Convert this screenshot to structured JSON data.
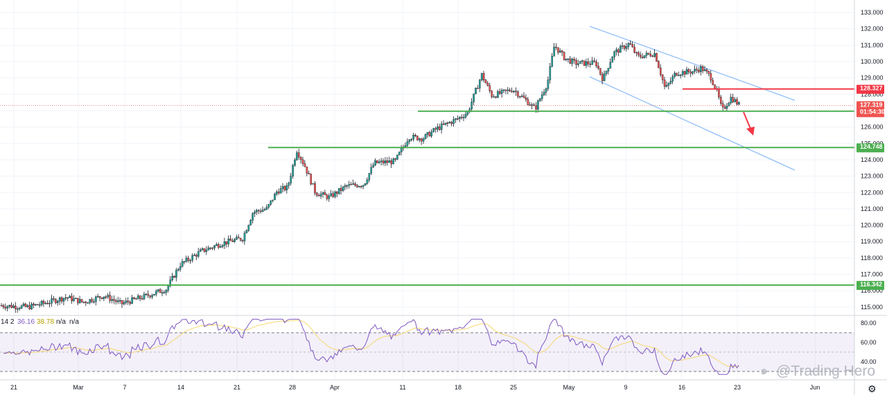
{
  "chart_data": {
    "type": "candlestick",
    "price_axis": {
      "ticks": [
        "133.000",
        "132.000",
        "131.000",
        "130.000",
        "129.000",
        "128.000",
        "127.000",
        "126.000",
        "125.000",
        "124.000",
        "123.000",
        "122.000",
        "121.000",
        "120.000",
        "119.000",
        "118.000",
        "117.000",
        "116.000",
        "115.000"
      ],
      "range": [
        114.8,
        133.4
      ]
    },
    "time_axis": {
      "ticks": [
        "21",
        "Mar",
        "7",
        "14",
        "21",
        "28",
        "Apr",
        "11",
        "18",
        "25",
        "May",
        "9",
        "16",
        "23",
        "Jun"
      ]
    },
    "horizontal_levels": [
      {
        "value": "128.327",
        "color": "#f23645"
      },
      {
        "value": "126.968",
        "color": "#4caf50"
      },
      {
        "value": "124.748",
        "color": "#4caf50"
      },
      {
        "value": "116.342",
        "color": "#4caf50"
      }
    ],
    "last_price": {
      "value": "127.319",
      "countdown": "01:54:30",
      "color": "#ef5350"
    },
    "channel": {
      "color": "#90bff9"
    },
    "projection_arrow": {
      "color": "#f23645"
    },
    "rsi": {
      "legend": {
        "period": "14 2",
        "value1": "36.16",
        "value2": "38.78",
        "value3": "n/a",
        "value4": "n/a"
      },
      "ticks": [
        "80.00",
        "60.00",
        "40.00"
      ],
      "line_color": "#7e57c2",
      "ma_color": "#f5d76e",
      "band_upper": 70,
      "band_lower": 30,
      "range": [
        25,
        85
      ]
    },
    "candle_colors": {
      "up": "#26a69a",
      "down": "#ef5350",
      "stroke": "#131722"
    }
  },
  "watermark": {
    "text": "@Trading Hero",
    "icon": "swirl-logo-icon"
  }
}
